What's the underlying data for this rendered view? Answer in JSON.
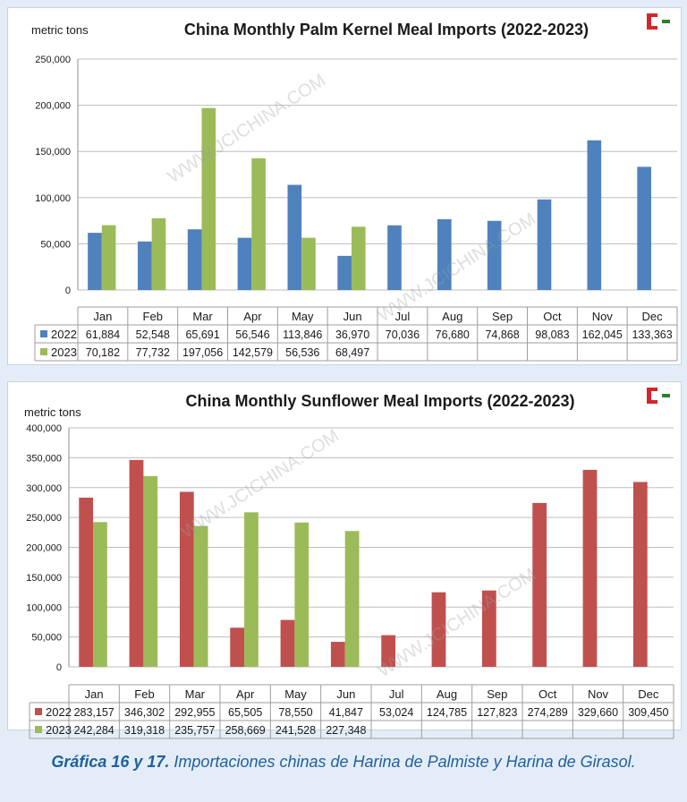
{
  "charts": [
    {
      "type": "bar",
      "title": "China Monthly Palm Kernel Meal Imports (2022-2023)",
      "units_label": "metric tons",
      "watermark": "WWW.JCICHINA.COM",
      "categories": [
        "Jan",
        "Feb",
        "Mar",
        "Apr",
        "May",
        "Jun",
        "Jul",
        "Aug",
        "Sep",
        "Oct",
        "Nov",
        "Dec"
      ],
      "ylim": [
        0,
        250000
      ],
      "yticks": [
        0,
        50000,
        100000,
        150000,
        200000,
        250000
      ],
      "ytick_labels": [
        "0",
        "50,000",
        "100,000",
        "150,000",
        "200,000",
        "250,000"
      ],
      "series": [
        {
          "name": "2022",
          "color": "#4f81bd",
          "values": [
            61884,
            52548,
            65691,
            56546,
            113846,
            36970,
            70036,
            76680,
            74868,
            98083,
            162045,
            133363
          ],
          "labels": [
            "61,884",
            "52,548",
            "65,691",
            "56,546",
            "113,846",
            "36,970",
            "70,036",
            "76,680",
            "74,868",
            "98,083",
            "162,045",
            "133,363"
          ]
        },
        {
          "name": "2023",
          "color": "#9bbb59",
          "values": [
            70182,
            77732,
            197056,
            142579,
            56536,
            68497,
            null,
            null,
            null,
            null,
            null,
            null
          ],
          "labels": [
            "70,182",
            "77,732",
            "197,056",
            "142,579",
            "56,536",
            "68,497",
            "",
            "",
            "",
            "",
            "",
            ""
          ]
        }
      ]
    },
    {
      "type": "bar",
      "title": "China Monthly Sunflower Meal Imports (2022-2023)",
      "units_label": "metric tons",
      "watermark": "WWW.JCICHINA.COM",
      "categories": [
        "Jan",
        "Feb",
        "Mar",
        "Apr",
        "May",
        "Jun",
        "Jul",
        "Aug",
        "Sep",
        "Oct",
        "Nov",
        "Dec"
      ],
      "ylim": [
        0,
        400000
      ],
      "yticks": [
        0,
        50000,
        100000,
        150000,
        200000,
        250000,
        300000,
        350000,
        400000
      ],
      "ytick_labels": [
        "0",
        "50,000",
        "100,000",
        "150,000",
        "200,000",
        "250,000",
        "300,000",
        "350,000",
        "400,000"
      ],
      "series": [
        {
          "name": "2022",
          "color": "#c0504d",
          "values": [
            283157,
            346302,
            292955,
            65505,
            78550,
            41847,
            53024,
            124785,
            127823,
            274289,
            329660,
            309450
          ],
          "labels": [
            "283,157",
            "346,302",
            "292,955",
            "65,505",
            "78,550",
            "41,847",
            "53,024",
            "124,785",
            "127,823",
            "274,289",
            "329,660",
            "309,450"
          ]
        },
        {
          "name": "2023",
          "color": "#9bbb59",
          "values": [
            242284,
            319318,
            235757,
            258669,
            241528,
            227348,
            null,
            null,
            null,
            null,
            null,
            null
          ],
          "labels": [
            "242,284",
            "319,318",
            "235,757",
            "258,669",
            "241,528",
            "227,348",
            "",
            "",
            "",
            "",
            "",
            ""
          ]
        }
      ]
    }
  ],
  "caption": {
    "bold": "Gráfica 16 y 17.",
    "text": " Importaciones chinas de Harina de Palmiste y Harina de Girasol."
  }
}
